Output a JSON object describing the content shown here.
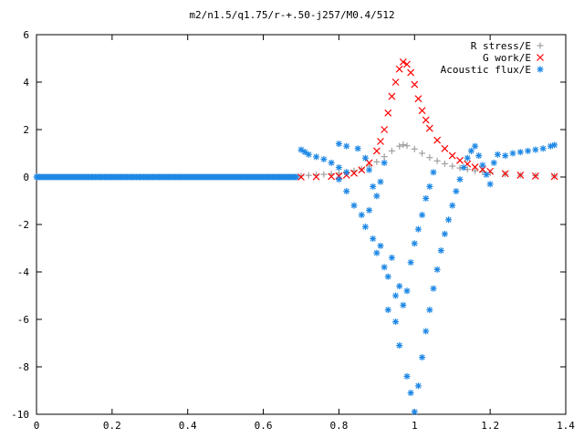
{
  "chart_data": {
    "type": "scatter",
    "title": "m2/n1.5/q1.75/r-+.50-j257/M0.4/512",
    "xlabel": "",
    "ylabel": "",
    "xlim": [
      0,
      1.4
    ],
    "ylim": [
      -10,
      6
    ],
    "x_ticks": [
      "0",
      "0.2",
      "0.4",
      "0.6",
      "0.8",
      "1",
      "1.2",
      "1.4"
    ],
    "y_ticks": [
      "6",
      "4",
      "2",
      "0",
      "-2",
      "-4",
      "-6",
      "-8",
      "-10"
    ],
    "grid": false,
    "legend_position": "top-right",
    "series": [
      {
        "name": "R stress/E",
        "marker": "+",
        "color": "#a0a0a0",
        "points": [
          [
            0.7,
            0.05
          ],
          [
            0.72,
            0.07
          ],
          [
            0.74,
            0.09
          ],
          [
            0.76,
            0.11
          ],
          [
            0.78,
            0.13
          ],
          [
            0.8,
            0.16
          ],
          [
            0.82,
            0.2
          ],
          [
            0.84,
            0.26
          ],
          [
            0.86,
            0.34
          ],
          [
            0.88,
            0.46
          ],
          [
            0.9,
            0.64
          ],
          [
            0.92,
            0.86
          ],
          [
            0.94,
            1.1
          ],
          [
            0.96,
            1.3
          ],
          [
            0.97,
            1.36
          ],
          [
            0.98,
            1.32
          ],
          [
            1.0,
            1.18
          ],
          [
            1.02,
            1.0
          ],
          [
            1.04,
            0.82
          ],
          [
            1.06,
            0.68
          ],
          [
            1.08,
            0.56
          ],
          [
            1.1,
            0.46
          ],
          [
            1.12,
            0.38
          ],
          [
            1.14,
            0.32
          ],
          [
            1.16,
            0.26
          ],
          [
            1.18,
            0.22
          ],
          [
            1.2,
            0.18
          ],
          [
            1.24,
            0.12
          ],
          [
            1.28,
            0.08
          ],
          [
            1.32,
            0.06
          ],
          [
            1.37,
            0.04
          ]
        ]
      },
      {
        "name": "G work/E",
        "marker": "x",
        "color": "#ff0000",
        "points": [
          [
            0.7,
            0.0
          ],
          [
            0.74,
            0.01
          ],
          [
            0.78,
            0.02
          ],
          [
            0.8,
            0.04
          ],
          [
            0.82,
            0.08
          ],
          [
            0.84,
            0.16
          ],
          [
            0.86,
            0.3
          ],
          [
            0.88,
            0.6
          ],
          [
            0.9,
            1.1
          ],
          [
            0.91,
            1.5
          ],
          [
            0.92,
            2.0
          ],
          [
            0.93,
            2.7
          ],
          [
            0.94,
            3.4
          ],
          [
            0.95,
            4.0
          ],
          [
            0.96,
            4.55
          ],
          [
            0.97,
            4.85
          ],
          [
            0.98,
            4.75
          ],
          [
            0.99,
            4.4
          ],
          [
            1.0,
            3.9
          ],
          [
            1.01,
            3.3
          ],
          [
            1.02,
            2.8
          ],
          [
            1.03,
            2.4
          ],
          [
            1.04,
            2.05
          ],
          [
            1.06,
            1.55
          ],
          [
            1.08,
            1.2
          ],
          [
            1.1,
            0.9
          ],
          [
            1.12,
            0.7
          ],
          [
            1.14,
            0.55
          ],
          [
            1.16,
            0.42
          ],
          [
            1.18,
            0.32
          ],
          [
            1.2,
            0.24
          ],
          [
            1.24,
            0.14
          ],
          [
            1.28,
            0.08
          ],
          [
            1.32,
            0.04
          ],
          [
            1.37,
            0.02
          ]
        ]
      },
      {
        "name": "Acoustic flux/E",
        "marker": "*",
        "color": "#1e88e5",
        "points": [
          [
            0.7,
            1.15
          ],
          [
            0.71,
            1.05
          ],
          [
            0.72,
            0.95
          ],
          [
            0.74,
            0.85
          ],
          [
            0.76,
            0.75
          ],
          [
            0.78,
            0.6
          ],
          [
            0.8,
            0.4
          ],
          [
            0.82,
            0.2
          ],
          [
            0.8,
            1.4
          ],
          [
            0.82,
            1.3
          ],
          [
            0.85,
            1.2
          ],
          [
            0.87,
            0.8
          ],
          [
            0.88,
            0.3
          ],
          [
            0.89,
            -0.4
          ],
          [
            0.9,
            -0.8
          ],
          [
            0.91,
            -0.2
          ],
          [
            0.92,
            0.6
          ],
          [
            0.8,
            -0.1
          ],
          [
            0.82,
            -0.6
          ],
          [
            0.84,
            -1.2
          ],
          [
            0.86,
            -1.6
          ],
          [
            0.87,
            -2.1
          ],
          [
            0.88,
            -1.4
          ],
          [
            0.89,
            -2.6
          ],
          [
            0.9,
            -3.2
          ],
          [
            0.91,
            -2.9
          ],
          [
            0.92,
            -3.8
          ],
          [
            0.93,
            -4.2
          ],
          [
            0.94,
            -3.4
          ],
          [
            0.95,
            -5.0
          ],
          [
            0.96,
            -4.6
          ],
          [
            0.93,
            -5.6
          ],
          [
            0.95,
            -6.1
          ],
          [
            0.97,
            -5.4
          ],
          [
            0.98,
            -4.8
          ],
          [
            0.99,
            -3.6
          ],
          [
            1.0,
            -2.8
          ],
          [
            1.01,
            -2.2
          ],
          [
            1.02,
            -1.6
          ],
          [
            1.03,
            -0.9
          ],
          [
            1.04,
            -0.4
          ],
          [
            1.05,
            0.2
          ],
          [
            0.96,
            -7.1
          ],
          [
            0.98,
            -8.4
          ],
          [
            0.99,
            -9.1
          ],
          [
            1.0,
            -9.9
          ],
          [
            1.01,
            -8.8
          ],
          [
            1.02,
            -7.6
          ],
          [
            1.03,
            -6.5
          ],
          [
            1.04,
            -5.6
          ],
          [
            1.05,
            -4.7
          ],
          [
            1.06,
            -3.9
          ],
          [
            1.07,
            -3.1
          ],
          [
            1.08,
            -2.4
          ],
          [
            1.09,
            -1.8
          ],
          [
            1.1,
            -1.2
          ],
          [
            1.11,
            -0.6
          ],
          [
            1.12,
            -0.1
          ],
          [
            1.13,
            0.4
          ],
          [
            1.14,
            0.8
          ],
          [
            1.15,
            1.1
          ],
          [
            1.16,
            1.3
          ],
          [
            1.17,
            0.9
          ],
          [
            1.18,
            0.5
          ],
          [
            1.19,
            0.1
          ],
          [
            1.2,
            -0.3
          ],
          [
            1.21,
            0.6
          ],
          [
            1.22,
            0.95
          ],
          [
            1.24,
            0.9
          ],
          [
            1.26,
            1.0
          ],
          [
            1.28,
            1.05
          ],
          [
            1.3,
            1.1
          ],
          [
            1.32,
            1.15
          ],
          [
            1.34,
            1.2
          ],
          [
            1.36,
            1.3
          ],
          [
            1.37,
            1.35
          ]
        ]
      }
    ],
    "baseline_flux_region": {
      "x_from": 0.0,
      "x_to": 0.69,
      "y": 0.0
    }
  }
}
